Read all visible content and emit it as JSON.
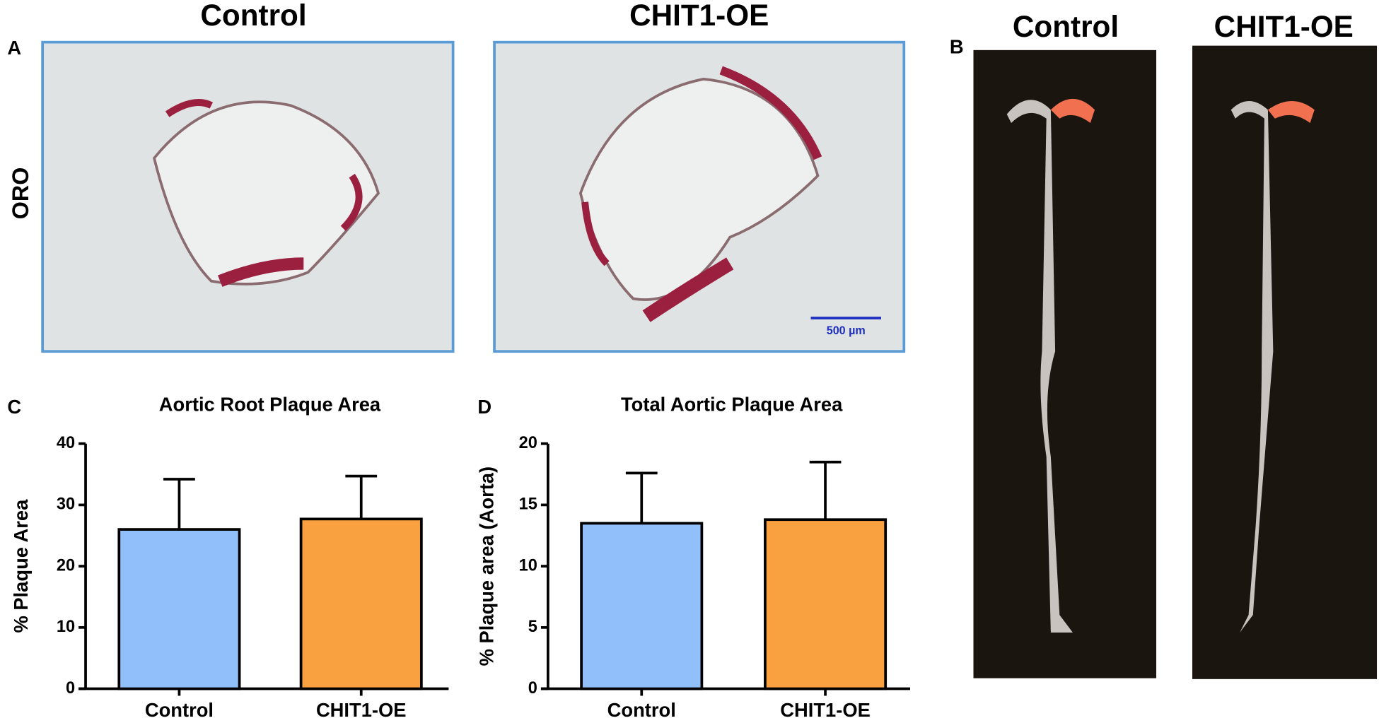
{
  "figure": {
    "panel_labels": [
      "A",
      "B",
      "C",
      "D"
    ],
    "panel_a": {
      "headers": [
        "Control",
        "CHIT1-OE"
      ],
      "row_label": "ORO",
      "scale_bar": "500 µm"
    },
    "panel_b": {
      "headers": [
        "Control",
        "CHIT1-OE"
      ]
    }
  },
  "chart_data": [
    {
      "type": "bar",
      "title": "Aortic Root Plaque Area",
      "y_label": "% Plaque Area",
      "categories": [
        "Control",
        "CHIT1-OE"
      ],
      "series": [
        {
          "values": [
            26,
            27.7
          ],
          "errors": [
            8.2,
            7.0
          ],
          "colors": [
            "#90bff9",
            "#f9a040"
          ]
        }
      ],
      "ylim": [
        0,
        40
      ],
      "yticks": [
        0,
        10,
        20,
        30,
        40
      ]
    },
    {
      "type": "bar",
      "title": "Total Aortic Plaque Area",
      "y_label": "% Plaque area (Aorta)",
      "categories": [
        "Control",
        "CHIT1-OE"
      ],
      "series": [
        {
          "values": [
            13.5,
            13.8
          ],
          "errors": [
            4.1,
            4.7
          ],
          "colors": [
            "#90bff9",
            "#f9a040"
          ]
        }
      ],
      "ylim": [
        0,
        20
      ],
      "yticks": [
        0,
        5,
        10,
        15,
        20
      ]
    }
  ]
}
